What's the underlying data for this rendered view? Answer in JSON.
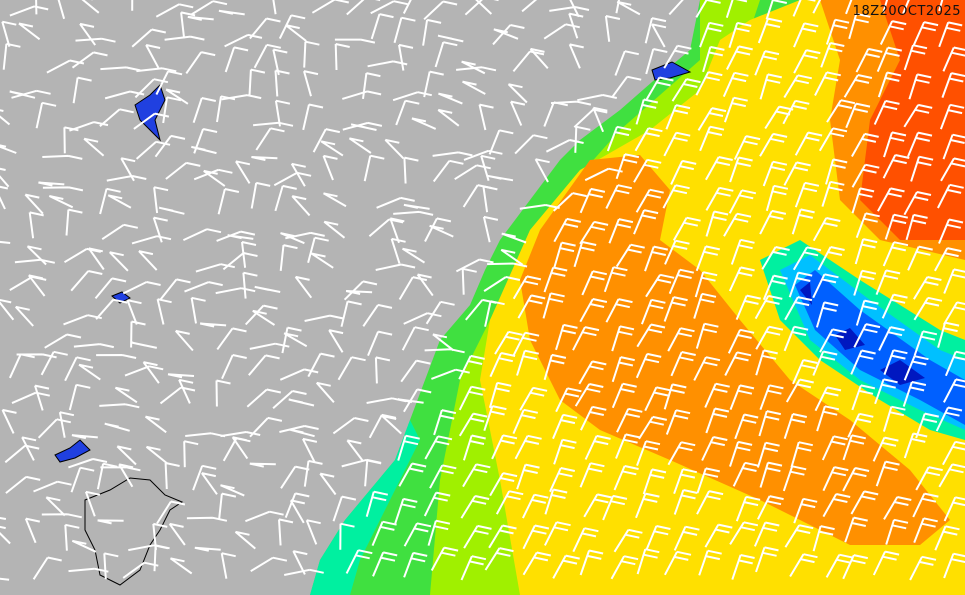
{
  "timestamp": "18Z20OCT2025",
  "colors": {
    "land": "#b4b4b4",
    "lakes": "#2040e0",
    "scale": [
      "#0060ff",
      "#00c0ff",
      "#00f0a0",
      "#40e040",
      "#a0f000",
      "#ffe000",
      "#ff9000",
      "#ff5000"
    ],
    "barbs": "#ffffff"
  }
}
